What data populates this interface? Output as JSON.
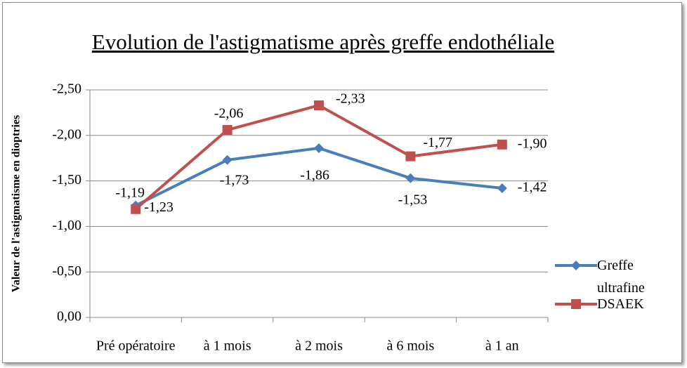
{
  "chart_data": {
    "type": "line",
    "title": "Evolution de l'astigmatisme après greffe endothéliale",
    "y_label": "Valeur de l'astigmatisme en dioptries",
    "categories": [
      "Pré opératoire",
      "à 1 mois",
      "à 2 mois",
      "à 6 mois",
      "à 1 an"
    ],
    "series": [
      {
        "name": "Greffe ultrafine",
        "color": "#4a7ebb",
        "marker": "diamond",
        "values": [
          -1.23,
          -1.73,
          -1.86,
          -1.53,
          -1.42
        ],
        "value_labels": [
          "-1,23",
          "-1,73",
          "-1,86",
          "-1,53",
          "-1,42"
        ]
      },
      {
        "name": "DSAEK",
        "color": "#c0504d",
        "marker": "square",
        "values": [
          -1.19,
          -2.06,
          -2.33,
          -1.77,
          -1.9
        ],
        "value_labels": [
          "-1,19",
          "-2,06",
          "-2,33",
          "-1,77",
          "-1,90"
        ]
      }
    ],
    "ylim": [
      0,
      -2.5
    ],
    "yticks": [
      {
        "value": 0,
        "label": "0,00"
      },
      {
        "value": -0.5,
        "label": "-0,50"
      },
      {
        "value": -1,
        "label": "-1,00"
      },
      {
        "value": -1.5,
        "label": "-1,50"
      },
      {
        "value": -2,
        "label": "-2,00"
      },
      {
        "value": -2.5,
        "label": "-2,50"
      }
    ],
    "grid": true,
    "legend": "right"
  }
}
